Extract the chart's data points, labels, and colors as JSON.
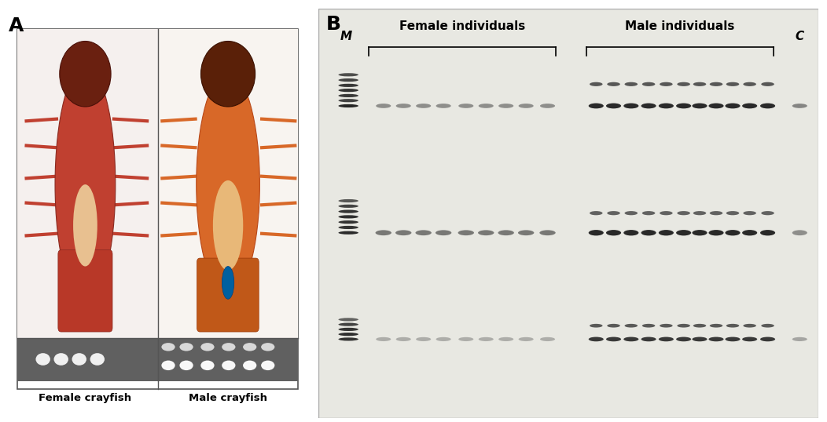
{
  "fig_width": 10.52,
  "fig_height": 5.38,
  "dpi": 100,
  "bg_color": "#ffffff",
  "panel_A_label": "A",
  "panel_B_label": "B",
  "label_female": "Female individuals",
  "label_male": "Male individuals",
  "label_M": "M",
  "label_C": "C",
  "label_female_crayfish": "Female crayfish",
  "label_male_crayfish": "Male crayfish",
  "gel_bg_color": "#e8e8e2",
  "gel_band_dark": "#1a1a1a",
  "gel_band_mid": "#3a3a3a",
  "gel_band_light": "#888888",
  "photo_female_bg": "#f5f0ee",
  "photo_male_bg": "#f8f4f0",
  "gel_strip_bg": "#707070"
}
